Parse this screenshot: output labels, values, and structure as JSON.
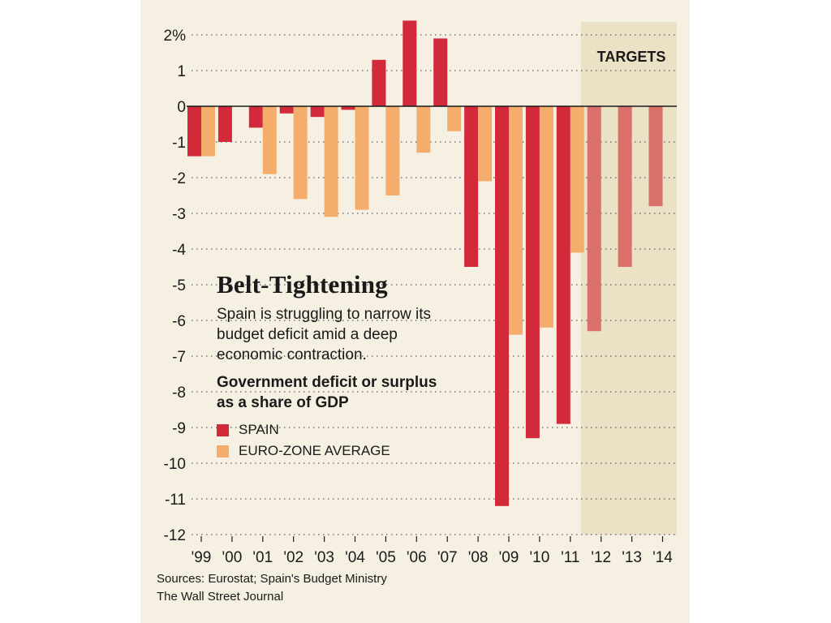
{
  "chart_data": {
    "type": "bar",
    "title": "Belt-Tightening",
    "subtitle": "Spain is struggling to narrow its budget deficit amid a deep economic contraction.",
    "caption": "Government deficit or surplus as a share of GDP",
    "categories": [
      "'99",
      "'00",
      "'01",
      "'02",
      "'03",
      "'04",
      "'05",
      "'06",
      "'07",
      "'08",
      "'09",
      "'10",
      "'11",
      "'12",
      "'13",
      "'14"
    ],
    "series": [
      {
        "name": "SPAIN",
        "color": "#d22a3a",
        "target_color": "#d9706a",
        "values": [
          -1.4,
          -1.0,
          -0.6,
          -0.2,
          -0.3,
          -0.1,
          1.3,
          2.4,
          1.9,
          -4.5,
          -11.2,
          -9.3,
          -8.9,
          -6.3,
          -4.5,
          null
        ]
      },
      {
        "name": "EURO-ZONE AVERAGE",
        "color": "#f5ad6e",
        "values": [
          -1.4,
          null,
          -1.9,
          -2.6,
          -3.1,
          -2.9,
          -2.5,
          -1.3,
          -0.7,
          -2.1,
          -6.4,
          -6.2,
          -4.1,
          null,
          null,
          null
        ]
      }
    ],
    "target_years": [
      "'12",
      "'13",
      "'14"
    ],
    "targets_values": [
      -6.3,
      -4.5,
      -2.8
    ],
    "targets_label": "TARGETS",
    "y_ticks": [
      "2%",
      "1",
      "0",
      "-1",
      "-2",
      "-3",
      "-4",
      "-5",
      "-6",
      "-7",
      "-8",
      "-9",
      "-10",
      "-11",
      "-12"
    ],
    "ylim": [
      -12,
      2
    ],
    "grid": true,
    "legend_placement": "center-left, below title",
    "colors": {
      "background": "#f5f0e1",
      "targets_band": "#ebe1c4",
      "spain": "#d22a3a",
      "euro_zone": "#f5ad6e",
      "spain_target": "#d9706a"
    }
  },
  "footer": {
    "sources": "Sources: Eurostat; Spain's Budget Ministry",
    "publisher": "The Wall Street Journal"
  }
}
